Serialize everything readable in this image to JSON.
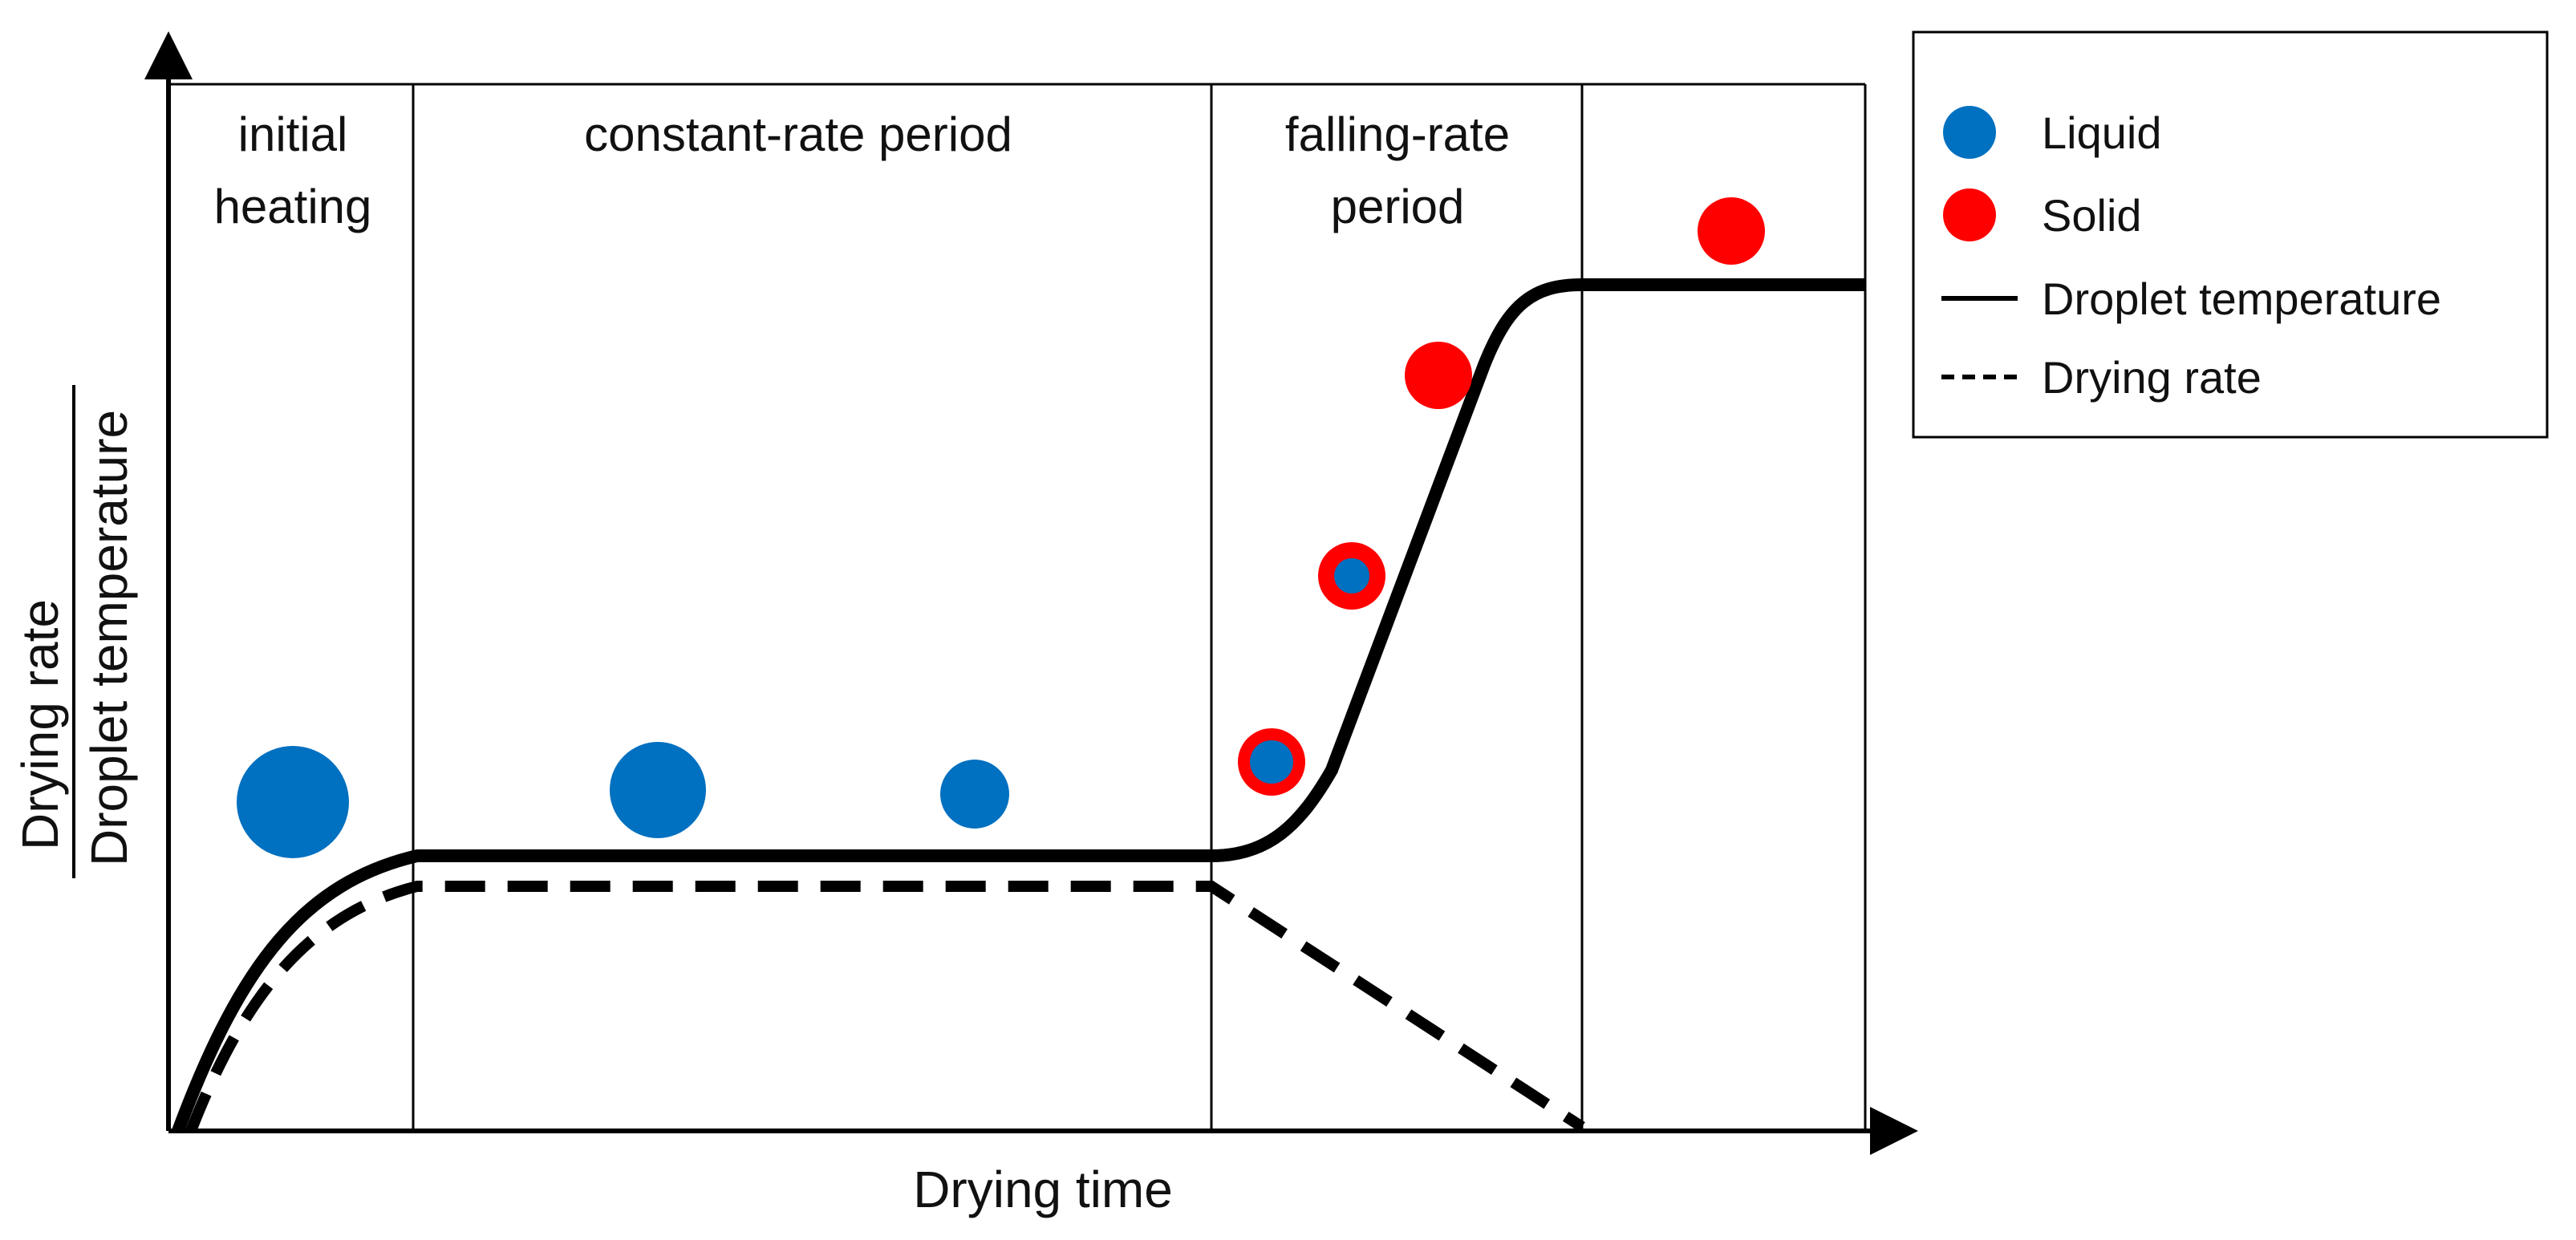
{
  "title": "",
  "axes": {
    "x_label": "Drying time",
    "y_label_top": "Drying rate",
    "y_label_bottom": "Droplet temperature"
  },
  "regions": [
    {
      "id": "initial",
      "lines": [
        "initial",
        "heating"
      ]
    },
    {
      "id": "constant",
      "lines": [
        "constant-rate period"
      ]
    },
    {
      "id": "falling",
      "lines": [
        "falling-rate",
        "period"
      ]
    },
    {
      "id": "final",
      "lines": []
    }
  ],
  "legend": {
    "liquid": "Liquid",
    "solid": "Solid",
    "droplet_temperature": "Droplet temperature",
    "drying_rate": "Drying rate"
  },
  "colors": {
    "liquid": "#0070C0",
    "solid": "#FF0000",
    "line": "#000000"
  },
  "droplets": [
    {
      "stage": "initial heating",
      "type": "liquid"
    },
    {
      "stage": "constant-rate period",
      "type": "liquid"
    },
    {
      "stage": "constant-rate period",
      "type": "liquid"
    },
    {
      "stage": "falling-rate period",
      "type": "liquid core with solid shell"
    },
    {
      "stage": "falling-rate period",
      "type": "liquid core with solid shell"
    },
    {
      "stage": "falling-rate period",
      "type": "solid"
    },
    {
      "stage": "final",
      "type": "solid"
    }
  ]
}
